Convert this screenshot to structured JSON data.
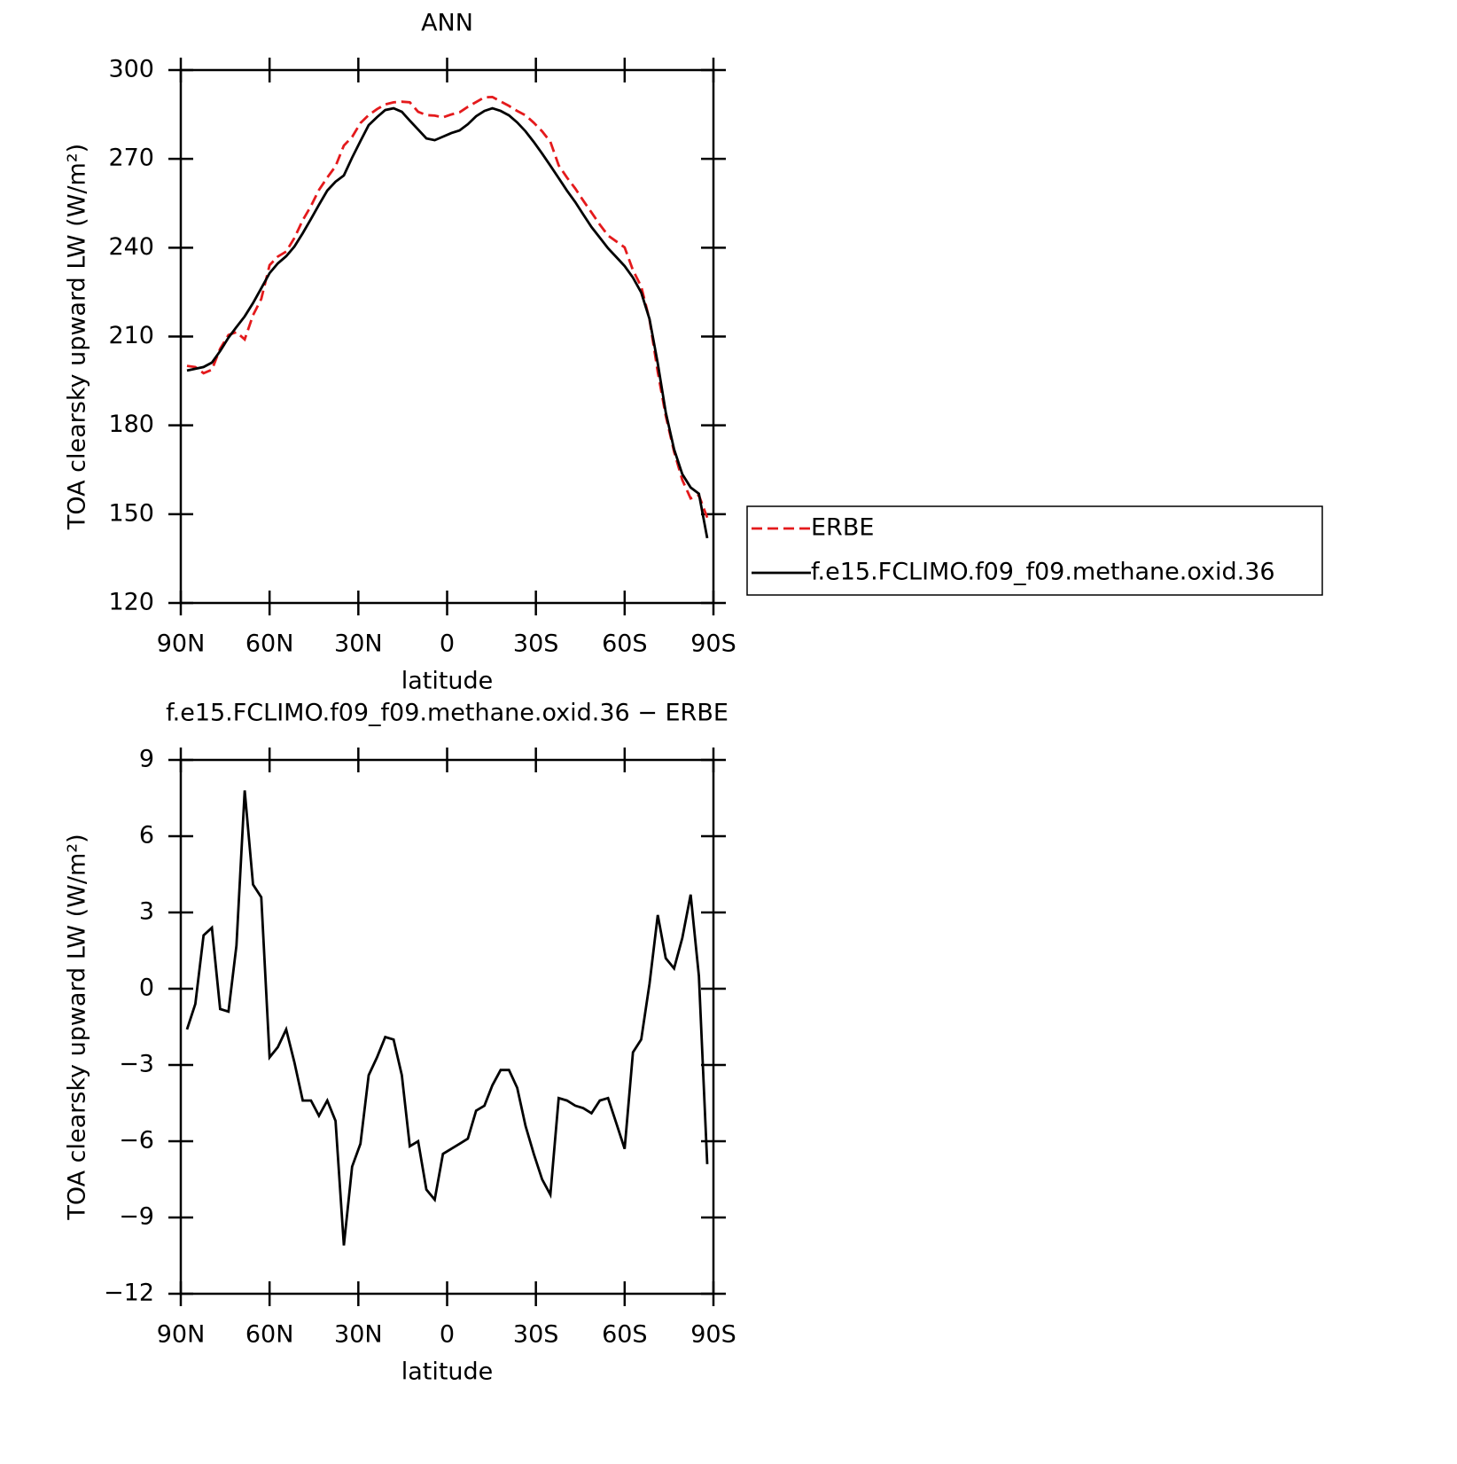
{
  "chart_data": [
    {
      "type": "line",
      "title": "ANN",
      "x_label": "latitude",
      "y_label": "TOA clearsky upward LW (W/m²)",
      "x": [
        87.9,
        85.1,
        82.3,
        79.5,
        76.7,
        73.9,
        71.2,
        68.4,
        65.6,
        62.8,
        60.0,
        57.2,
        54.4,
        51.6,
        48.8,
        46.0,
        43.3,
        40.5,
        37.7,
        34.9,
        32.1,
        29.3,
        26.5,
        23.7,
        20.9,
        18.1,
        15.3,
        12.6,
        9.8,
        7.0,
        4.2,
        1.4,
        -1.4,
        -4.2,
        -7.0,
        -9.8,
        -12.6,
        -15.3,
        -18.1,
        -20.9,
        -23.7,
        -26.5,
        -29.3,
        -32.1,
        -34.9,
        -37.7,
        -40.5,
        -43.3,
        -46.0,
        -48.8,
        -51.6,
        -54.4,
        -57.2,
        -60.0,
        -62.8,
        -65.6,
        -68.4,
        -71.2,
        -73.9,
        -76.7,
        -79.5,
        -82.3,
        -85.1,
        -87.9
      ],
      "xlim": [
        90,
        -90
      ],
      "xticks": [
        {
          "value": 90,
          "label": "90N"
        },
        {
          "value": 60,
          "label": "60N"
        },
        {
          "value": 30,
          "label": "30N"
        },
        0,
        {
          "value": -30,
          "label": "30S"
        },
        {
          "value": -60,
          "label": "60S"
        },
        {
          "value": -90,
          "label": "90S"
        }
      ],
      "ylim": [
        120,
        300
      ],
      "yticks": [
        120,
        150,
        180,
        210,
        240,
        270,
        300
      ],
      "legend": "right",
      "series": [
        {
          "name": "ERBE",
          "color": "#e41a1c",
          "dash": "dashed",
          "values": [
            200.1,
            199.7,
            197.6,
            198.8,
            205.9,
            210.5,
            211.5,
            209.0,
            217.2,
            222.7,
            234.1,
            237.0,
            238.7,
            243.3,
            249.3,
            254.1,
            259.5,
            263.7,
            267.5,
            274.5,
            277.4,
            282.1,
            284.8,
            286.8,
            288.4,
            289.1,
            289.3,
            289.1,
            285.9,
            284.8,
            284.6,
            284.0,
            285.0,
            285.7,
            287.6,
            289.2,
            290.8,
            290.9,
            289.4,
            287.9,
            286.2,
            284.7,
            282.2,
            279.3,
            275.8,
            267.8,
            263.7,
            260.0,
            255.9,
            251.9,
            247.8,
            244.1,
            242.1,
            240.1,
            232.4,
            226.9,
            215.7,
            198.0,
            183.2,
            171.1,
            161.5,
            155.3,
            156.4,
            148.8
          ]
        },
        {
          "name": "f.e15.FCLIMO.f09_f09.methane.oxid.36",
          "color": "#000000",
          "dash": "solid",
          "values": [
            198.5,
            199.1,
            199.7,
            201.2,
            205.1,
            209.6,
            213.2,
            216.8,
            221.3,
            226.3,
            231.4,
            234.7,
            237.1,
            240.4,
            244.9,
            249.7,
            254.5,
            259.3,
            262.3,
            264.4,
            270.4,
            276.0,
            281.4,
            284.1,
            286.5,
            287.1,
            285.9,
            282.9,
            279.9,
            276.9,
            276.3,
            277.5,
            278.7,
            279.6,
            281.7,
            284.4,
            286.2,
            287.1,
            286.2,
            284.7,
            282.3,
            279.3,
            275.7,
            271.8,
            267.7,
            263.5,
            259.3,
            255.4,
            251.2,
            247.0,
            243.4,
            239.8,
            236.8,
            233.8,
            229.9,
            224.9,
            215.9,
            200.9,
            184.4,
            171.9,
            163.5,
            159.0,
            156.9,
            141.9
          ]
        }
      ]
    },
    {
      "type": "line",
      "title": "f.e15.FCLIMO.f09_f09.methane.oxid.36 − ERBE",
      "x_label": "latitude",
      "y_label": "TOA clearsky upward LW (W/m²)",
      "x": [
        87.9,
        85.1,
        82.3,
        79.5,
        76.7,
        73.9,
        71.2,
        68.4,
        65.6,
        62.8,
        60.0,
        57.2,
        54.4,
        51.6,
        48.8,
        46.0,
        43.3,
        40.5,
        37.7,
        34.9,
        32.1,
        29.3,
        26.5,
        23.7,
        20.9,
        18.1,
        15.3,
        12.6,
        9.8,
        7.0,
        4.2,
        1.4,
        -1.4,
        -4.2,
        -7.0,
        -9.8,
        -12.6,
        -15.3,
        -18.1,
        -20.9,
        -23.7,
        -26.5,
        -29.3,
        -32.1,
        -34.9,
        -37.7,
        -40.5,
        -43.3,
        -46.0,
        -48.8,
        -51.6,
        -54.4,
        -57.2,
        -60.0,
        -62.8,
        -65.6,
        -68.4,
        -71.2,
        -73.9,
        -76.7,
        -79.5,
        -82.3,
        -85.1,
        -87.9
      ],
      "xlim": [
        90,
        -90
      ],
      "xticks": [
        {
          "value": 90,
          "label": "90N"
        },
        {
          "value": 60,
          "label": "60N"
        },
        {
          "value": 30,
          "label": "30N"
        },
        0,
        {
          "value": -30,
          "label": "30S"
        },
        {
          "value": -60,
          "label": "60S"
        },
        {
          "value": -90,
          "label": "90S"
        }
      ],
      "ylim": [
        -12,
        9
      ],
      "yticks": [
        {
          "value": -12,
          "label": "−12"
        },
        {
          "value": -9,
          "label": "−9"
        },
        {
          "value": -6,
          "label": "−6"
        },
        {
          "value": -3,
          "label": "−3"
        },
        0,
        3,
        6,
        9
      ],
      "color": "#000000",
      "values": [
        -1.6,
        -0.6,
        2.1,
        2.4,
        -0.8,
        -0.9,
        1.7,
        7.8,
        4.1,
        3.6,
        -2.7,
        -2.3,
        -1.6,
        -2.9,
        -4.4,
        -4.4,
        -5.0,
        -4.4,
        -5.2,
        -10.1,
        -7.0,
        -6.1,
        -3.4,
        -2.7,
        -1.9,
        -2.0,
        -3.4,
        -6.2,
        -6.0,
        -7.9,
        -8.3,
        -6.5,
        -6.3,
        -6.1,
        -5.9,
        -4.8,
        -4.6,
        -3.8,
        -3.2,
        -3.2,
        -3.9,
        -5.4,
        -6.5,
        -7.5,
        -8.1,
        -4.3,
        -4.4,
        -4.6,
        -4.7,
        -4.9,
        -4.4,
        -4.3,
        -5.3,
        -6.3,
        -2.5,
        -2.0,
        0.2,
        2.9,
        1.2,
        0.8,
        2.0,
        3.7,
        0.5,
        -6.9
      ]
    }
  ]
}
